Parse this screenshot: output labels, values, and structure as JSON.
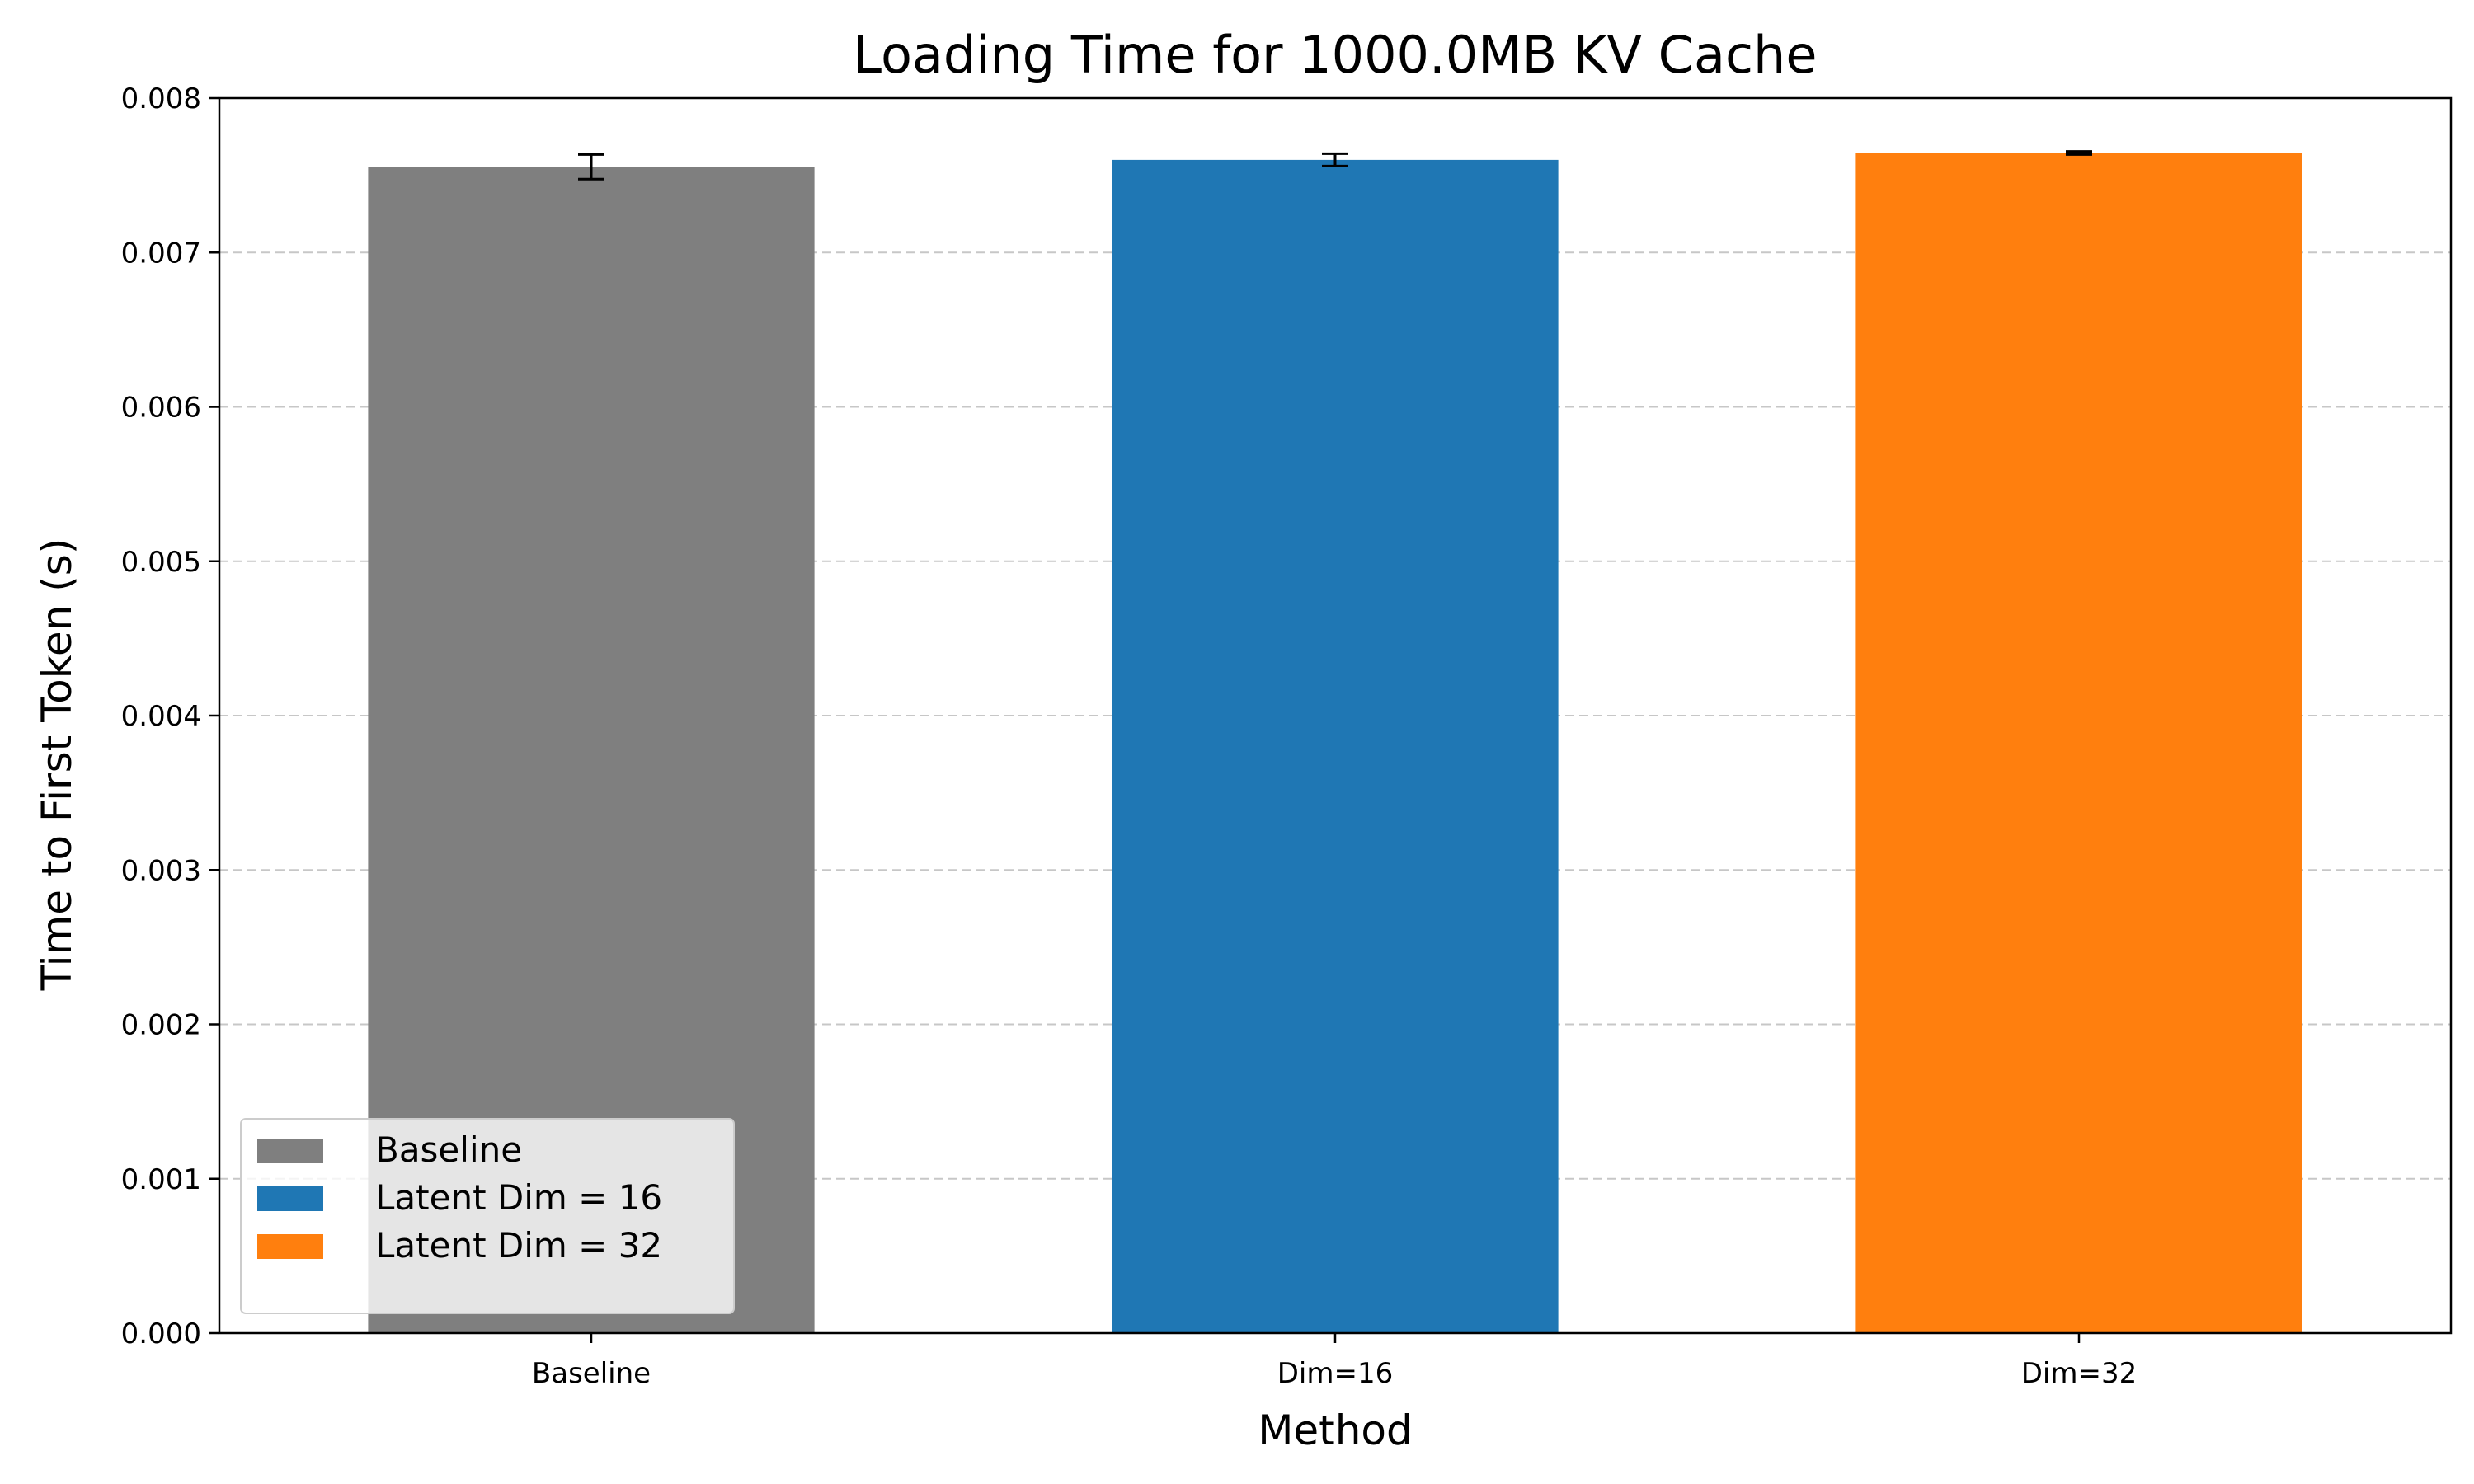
{
  "chart_data": {
    "type": "bar",
    "title": "Loading Time for 1000.0MB KV Cache",
    "xlabel": "Method",
    "ylabel": "Time to First Token (s)",
    "categories": [
      "Baseline",
      "Dim=16",
      "Dim=32"
    ],
    "values": [
      0.007555,
      0.0076,
      0.007645
    ],
    "errors": [
      8e-05,
      4e-05,
      1e-05
    ],
    "colors": [
      "#7f7f7f",
      "#1f77b4",
      "#ff7f0e"
    ],
    "ylim": [
      0,
      0.008
    ],
    "yticks": [
      "0.000",
      "0.001",
      "0.002",
      "0.003",
      "0.004",
      "0.005",
      "0.006",
      "0.007",
      "0.008"
    ],
    "grid": "horizontal-dashed",
    "legend": {
      "placement": "lower-left",
      "entries": [
        {
          "label": "Baseline",
          "color": "#7f7f7f"
        },
        {
          "label": "Latent Dim = 16",
          "color": "#1f77b4"
        },
        {
          "label": "Latent Dim = 32",
          "color": "#ff7f0e"
        }
      ]
    }
  }
}
